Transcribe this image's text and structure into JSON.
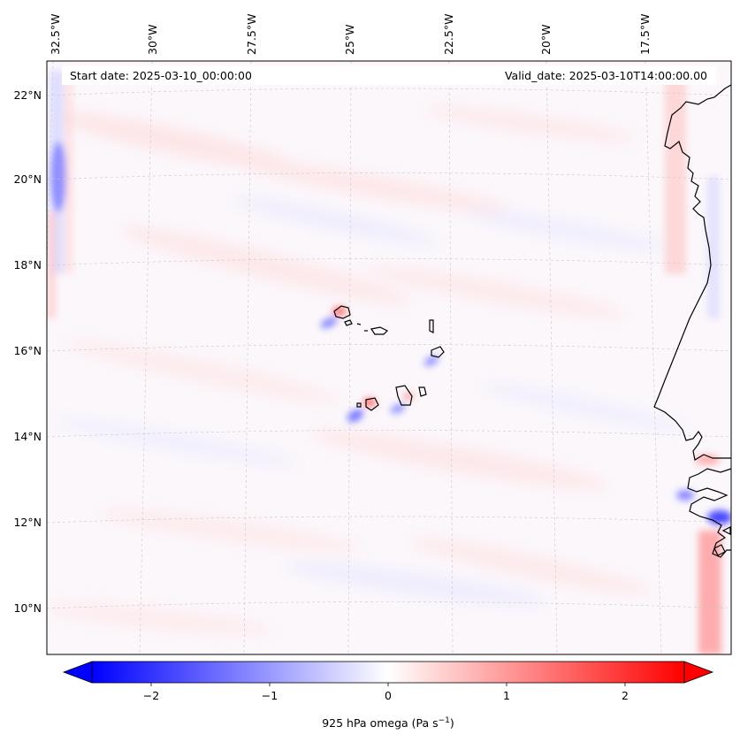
{
  "header": {
    "start_date": "Start date: 2025-03-10_00:00:00",
    "valid_date": "Valid_date: 2025-03-10T14:00:00.00"
  },
  "longitude_labels": [
    "32.5°W",
    "30°W",
    "27.5°W",
    "25°W",
    "22.5°W",
    "20°W",
    "17.5°W"
  ],
  "latitude_labels": [
    "22°N",
    "20°N",
    "18°N",
    "16°N",
    "14°N",
    "12°N",
    "10°N"
  ],
  "colorbar": {
    "label": "925 hPa omega (Pa s",
    "label_sup": "−1",
    "label_end": ")",
    "tick_labels": [
      "−2",
      "−1",
      "0",
      "1",
      "2"
    ],
    "ticks": [
      -2,
      -1,
      0,
      1,
      2
    ],
    "range": [
      -2.5,
      2.5
    ],
    "low_color": "#0000ff",
    "mid_color": "#ffffff",
    "high_color": "#ff0000",
    "extend": "both"
  },
  "chart_data": {
    "type": "heatmap",
    "variable": "925 hPa omega",
    "units": "Pa s^-1",
    "lon_range": [
      -33,
      -15.5
    ],
    "lat_range": [
      8.8,
      22.8
    ],
    "colormap": "bwr",
    "value_range": [
      -2.5,
      2.5
    ]
  },
  "colors": {
    "coastline": "#000000",
    "gridline": "#c8c8c8"
  }
}
